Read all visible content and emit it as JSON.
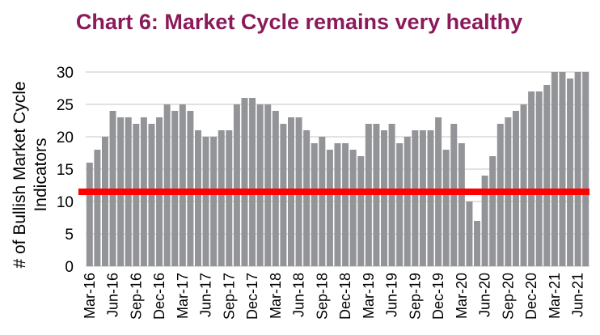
{
  "chart_data": {
    "type": "bar",
    "title": "Chart 6:  Market Cycle remains very healthy",
    "ylabel": "# of Bullish Market Cycle Indicators",
    "xlabel": "",
    "ylim": [
      0,
      30
    ],
    "yticks": [
      0,
      5,
      10,
      15,
      20,
      25,
      30
    ],
    "grid": true,
    "bar_color": "#939498",
    "threshold": {
      "value": 11.5,
      "color": "#FF0000"
    },
    "title_color": "#8B1A5A",
    "categories": [
      "Mar-16",
      "Apr-16",
      "May-16",
      "Jun-16",
      "Jul-16",
      "Aug-16",
      "Sep-16",
      "Oct-16",
      "Nov-16",
      "Dec-16",
      "Jan-17",
      "Feb-17",
      "Mar-17",
      "Apr-17",
      "May-17",
      "Jun-17",
      "Jul-17",
      "Aug-17",
      "Sep-17",
      "Oct-17",
      "Nov-17",
      "Dec-17",
      "Jan-18",
      "Feb-18",
      "Mar-18",
      "Apr-18",
      "May-18",
      "Jun-18",
      "Jul-18",
      "Aug-18",
      "Sep-18",
      "Oct-18",
      "Nov-18",
      "Dec-18",
      "Jan-19",
      "Feb-19",
      "Mar-19",
      "Apr-19",
      "May-19",
      "Jun-19",
      "Jul-19",
      "Aug-19",
      "Sep-19",
      "Oct-19",
      "Nov-19",
      "Dec-19",
      "Jan-20",
      "Feb-20",
      "Mar-20",
      "Apr-20",
      "May-20",
      "Jun-20",
      "Jul-20",
      "Aug-20",
      "Sep-20",
      "Oct-20",
      "Nov-20",
      "Dec-20",
      "Jan-21",
      "Feb-21",
      "Mar-21",
      "Apr-21",
      "May-21",
      "Jun-21",
      "Jul-21"
    ],
    "tick_labels": [
      "Mar-16",
      "Jun-16",
      "Sep-16",
      "Dec-16",
      "Mar-17",
      "Jun-17",
      "Sep-17",
      "Dec-17",
      "Mar-18",
      "Jun-18",
      "Sep-18",
      "Dec-18",
      "Mar-19",
      "Jun-19",
      "Sep-19",
      "Dec-19",
      "Mar-20",
      "Jun-20",
      "Sep-20",
      "Dec-20",
      "Mar-21",
      "Jun-21"
    ],
    "values": [
      16,
      18,
      20,
      24,
      23,
      23,
      22,
      23,
      22,
      23,
      25,
      24,
      25,
      24,
      21,
      20,
      20,
      21,
      21,
      25,
      26,
      26,
      25,
      25,
      24,
      22,
      23,
      23,
      21,
      19,
      20,
      18,
      19,
      19,
      18,
      17,
      22,
      22,
      21,
      22,
      19,
      20,
      21,
      21,
      21,
      23,
      18,
      22,
      19,
      10,
      7,
      14,
      17,
      22,
      23,
      24,
      25,
      27,
      27,
      28,
      30,
      30,
      29,
      30,
      30
    ]
  }
}
